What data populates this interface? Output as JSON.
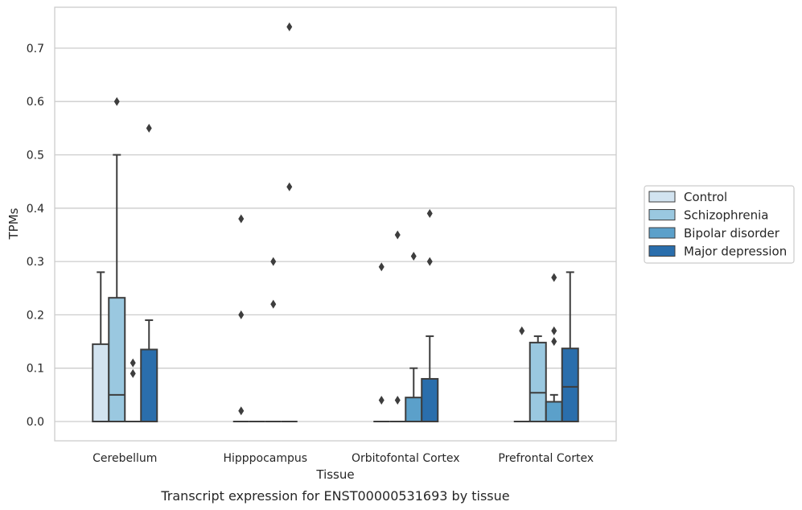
{
  "chart_data": {
    "type": "box",
    "xlabel": "Tissue",
    "ylabel": "TPMs",
    "caption": "Transcript expression for ENST00000531693 by tissue",
    "ylim": [
      -0.035,
      0.775
    ],
    "yticks": [
      "0.0",
      "0.1",
      "0.2",
      "0.3",
      "0.4",
      "0.5",
      "0.6",
      "0.7"
    ],
    "ytick_values": [
      0.0,
      0.1,
      0.2,
      0.3,
      0.4,
      0.5,
      0.6,
      0.7
    ],
    "grid": "horizontal",
    "legend_position": "right",
    "categories": [
      "Cerebellum",
      "Hipppocampus",
      "Orbitofontal Cortex",
      "Prefrontal Cortex"
    ],
    "series": [
      {
        "name": "Control",
        "color": "#d2e3f0",
        "boxes": [
          {
            "q1": 0.0,
            "median": 0.0,
            "q3": 0.145,
            "whisker_low": 0.0,
            "whisker_high": 0.28,
            "outliers": []
          },
          {
            "q1": 0.0,
            "median": 0.0,
            "q3": 0.0,
            "whisker_low": 0.0,
            "whisker_high": 0.0,
            "outliers": [
              0.38,
              0.2,
              0.02
            ]
          },
          {
            "q1": 0.0,
            "median": 0.0,
            "q3": 0.0,
            "whisker_low": 0.0,
            "whisker_high": 0.0,
            "outliers": [
              0.29,
              0.04
            ]
          },
          {
            "q1": 0.0,
            "median": 0.0,
            "q3": 0.0,
            "whisker_low": 0.0,
            "whisker_high": 0.0,
            "outliers": [
              0.17
            ]
          }
        ]
      },
      {
        "name": "Schizophrenia",
        "color": "#9ac8e0",
        "boxes": [
          {
            "q1": 0.0,
            "median": 0.05,
            "q3": 0.232,
            "whisker_low": 0.0,
            "whisker_high": 0.5,
            "outliers": [
              0.6
            ]
          },
          {
            "q1": 0.0,
            "median": 0.0,
            "q3": 0.0,
            "whisker_low": 0.0,
            "whisker_high": 0.0,
            "outliers": []
          },
          {
            "q1": 0.0,
            "median": 0.0,
            "q3": 0.0,
            "whisker_low": 0.0,
            "whisker_high": 0.0,
            "outliers": [
              0.35,
              0.04
            ]
          },
          {
            "q1": 0.0,
            "median": 0.054,
            "q3": 0.148,
            "whisker_low": 0.0,
            "whisker_high": 0.16,
            "outliers": []
          }
        ]
      },
      {
        "name": "Bipolar disorder",
        "color": "#5ba0ca",
        "boxes": [
          {
            "q1": 0.0,
            "median": 0.0,
            "q3": 0.0,
            "whisker_low": 0.0,
            "whisker_high": 0.0,
            "outliers": [
              0.11,
              0.09
            ]
          },
          {
            "q1": 0.0,
            "median": 0.0,
            "q3": 0.0,
            "whisker_low": 0.0,
            "whisker_high": 0.0,
            "outliers": [
              0.3,
              0.22
            ]
          },
          {
            "q1": 0.0,
            "median": 0.0,
            "q3": 0.045,
            "whisker_low": 0.0,
            "whisker_high": 0.1,
            "outliers": [
              0.31
            ]
          },
          {
            "q1": 0.0,
            "median": 0.0,
            "q3": 0.037,
            "whisker_low": 0.0,
            "whisker_high": 0.05,
            "outliers": [
              0.27,
              0.17,
              0.15
            ]
          }
        ]
      },
      {
        "name": "Major depression",
        "color": "#2a6eac",
        "boxes": [
          {
            "q1": 0.0,
            "median": 0.0,
            "q3": 0.135,
            "whisker_low": 0.0,
            "whisker_high": 0.19,
            "outliers": [
              0.55
            ]
          },
          {
            "q1": 0.0,
            "median": 0.0,
            "q3": 0.0,
            "whisker_low": 0.0,
            "whisker_high": 0.0,
            "outliers": [
              0.74,
              0.44
            ]
          },
          {
            "q1": 0.0,
            "median": 0.0,
            "q3": 0.08,
            "whisker_low": 0.0,
            "whisker_high": 0.16,
            "outliers": [
              0.39,
              0.3
            ]
          },
          {
            "q1": 0.0,
            "median": 0.065,
            "q3": 0.137,
            "whisker_low": 0.0,
            "whisker_high": 0.28,
            "outliers": []
          }
        ]
      }
    ]
  }
}
